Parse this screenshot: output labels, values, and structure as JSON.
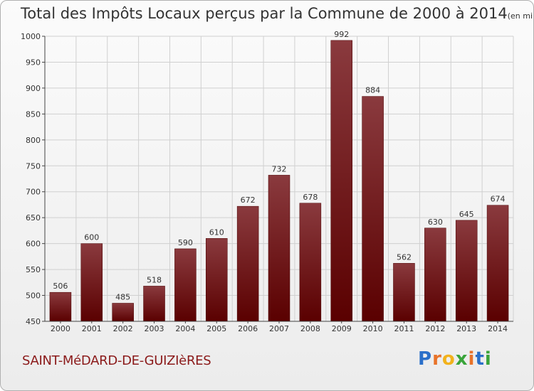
{
  "title": "Total des Impôts Locaux perçus par la Commune de 2000 à 2014",
  "title_unit": "(en milliers d'€)",
  "commune": "SAINT-MéDARD-DE-GUIZIèRES",
  "logo": {
    "text": "Proxiti",
    "letter_colors": [
      "#2a6fc9",
      "#e8732a",
      "#f2b21c",
      "#3aa43a",
      "#e8732a",
      "#2a6fc9",
      "#3aa43a"
    ]
  },
  "colors": {
    "bar_top": "#8a3a3e",
    "bar_bottom": "#5a0000",
    "grid": "#d0d0d0",
    "axis": "#444444"
  },
  "chart_data": {
    "type": "bar",
    "categories": [
      "2000",
      "2001",
      "2002",
      "2003",
      "2004",
      "2005",
      "2006",
      "2007",
      "2008",
      "2009",
      "2010",
      "2011",
      "2012",
      "2013",
      "2014"
    ],
    "values": [
      506,
      600,
      485,
      518,
      590,
      610,
      672,
      732,
      678,
      992,
      884,
      562,
      630,
      645,
      674
    ],
    "ylim": [
      450,
      1000
    ],
    "yticks": [
      450,
      500,
      550,
      600,
      650,
      700,
      750,
      800,
      850,
      900,
      950,
      1000
    ],
    "grid": true
  }
}
